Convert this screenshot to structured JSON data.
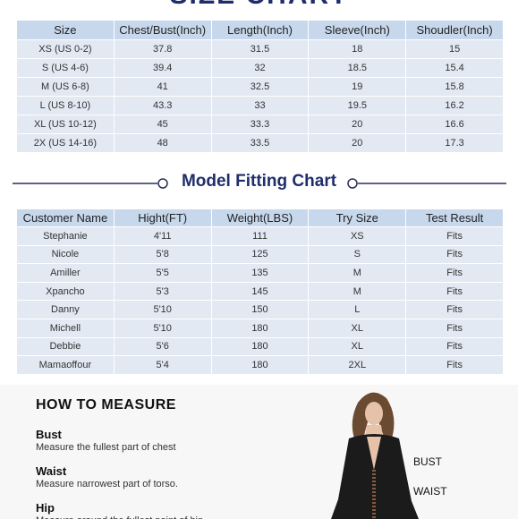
{
  "size_chart": {
    "title": "SIZE CHART",
    "headers": [
      "Size",
      "Chest/Bust(Inch)",
      "Length(Inch)",
      "Sleeve(Inch)",
      "Shoudler(Inch)"
    ],
    "rows": [
      [
        "XS (US 0-2)",
        "37.8",
        "31.5",
        "18",
        "15"
      ],
      [
        "S (US 4-6)",
        "39.4",
        "32",
        "18.5",
        "15.4"
      ],
      [
        "M (US 6-8)",
        "41",
        "32.5",
        "19",
        "15.8"
      ],
      [
        "L (US 8-10)",
        "43.3",
        "33",
        "19.5",
        "16.2"
      ],
      [
        "XL (US 10-12)",
        "45",
        "33.3",
        "20",
        "16.6"
      ],
      [
        "2X (US 14-16)",
        "48",
        "33.5",
        "20",
        "17.3"
      ]
    ]
  },
  "model_chart": {
    "title": "Model Fitting Chart",
    "headers": [
      "Customer Name",
      "Hight(FT)",
      "Weight(LBS)",
      "Try Size",
      "Test Result"
    ],
    "rows": [
      [
        "Stephanie",
        "4'11",
        "111",
        "XS",
        "Fits"
      ],
      [
        "Nicole",
        "5'8",
        "125",
        "S",
        "Fits"
      ],
      [
        "Amiller",
        "5'5",
        "135",
        "M",
        "Fits"
      ],
      [
        "Храncho",
        "5'3",
        "145",
        "M",
        "Fits"
      ],
      [
        "Danny",
        "5'10",
        "150",
        "L",
        "Fits"
      ],
      [
        "Michell",
        "5'10",
        "180",
        "XL",
        "Fits"
      ],
      [
        "Debbie",
        "5'6",
        "180",
        "XL",
        "Fits"
      ],
      [
        "Mamaoffour",
        "5'4",
        "180",
        "2XL",
        "Fits"
      ]
    ]
  },
  "measure": {
    "title": "HOW TO MEASURE",
    "items": [
      {
        "name": "Bust",
        "desc": "Measure the fullest part of chest"
      },
      {
        "name": "Waist",
        "desc": "Measure narrowest part of torso."
      },
      {
        "name": "Hip",
        "desc": "Measure around the fullest point of hip"
      }
    ],
    "labels": [
      "BUST",
      "WAIST"
    ]
  }
}
